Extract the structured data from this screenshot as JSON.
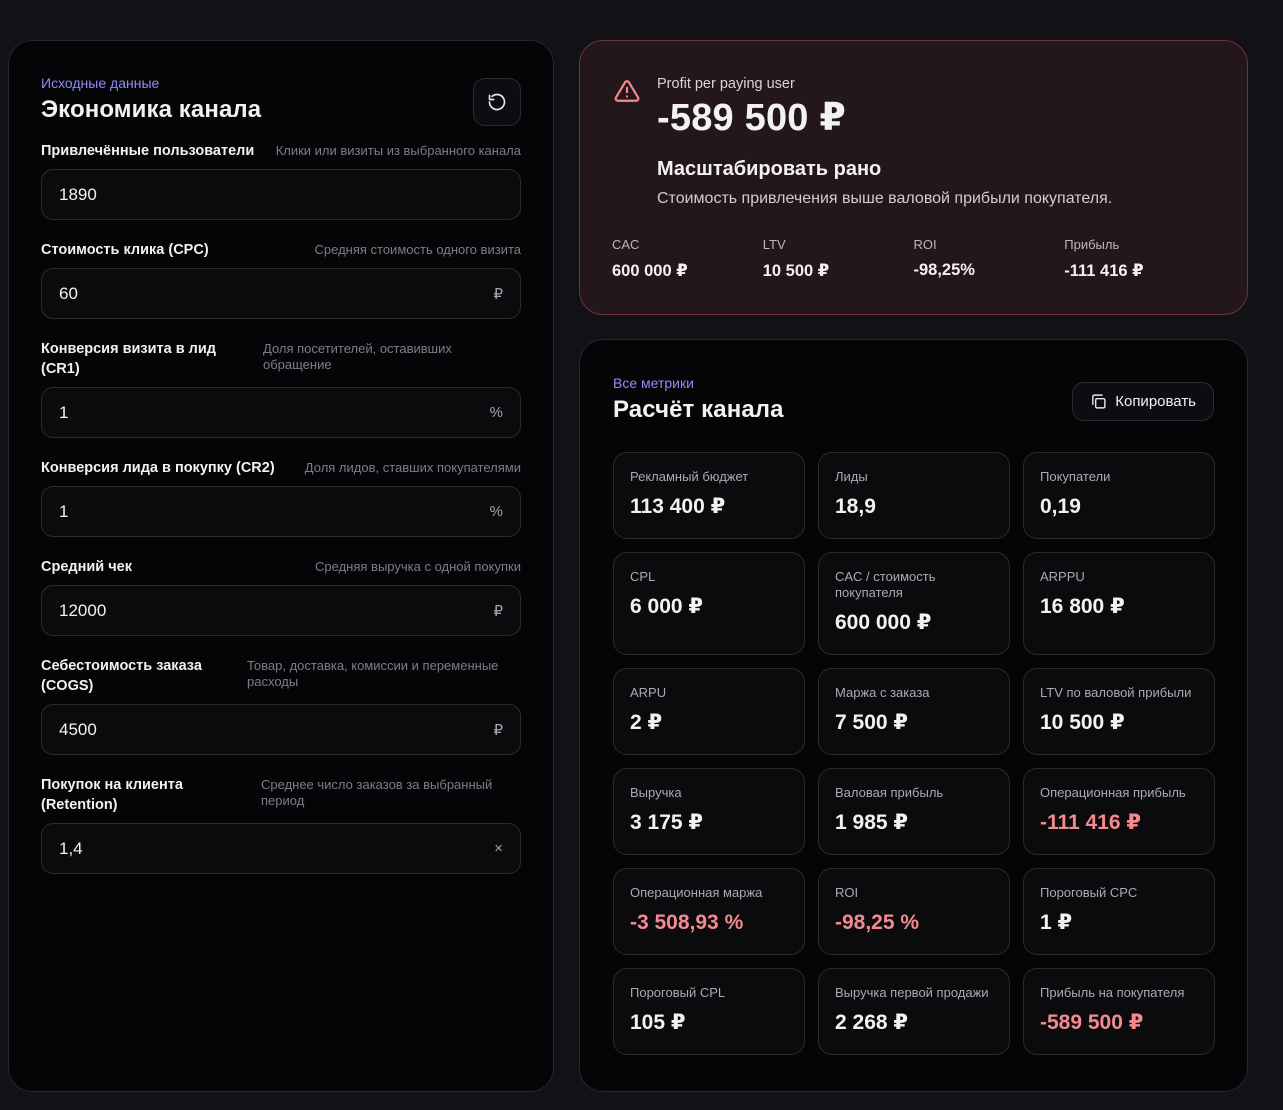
{
  "inputs": {
    "eyebrow": "Исходные данные",
    "title": "Экономика канала",
    "fields": [
      {
        "label": "Привлечённые пользователи",
        "hint": "Клики или визиты из выбранного канала",
        "value": "1890",
        "unit": ""
      },
      {
        "label": "Стоимость клика (CPC)",
        "hint": "Средняя стоимость одного визита",
        "value": "60",
        "unit": "₽"
      },
      {
        "label": "Конверсия визита в лид (CR1)",
        "hint": "Доля посетителей, оставивших обращение",
        "value": "1",
        "unit": "%"
      },
      {
        "label": "Конверсия лида в покупку (CR2)",
        "hint": "Доля лидов, ставших покупателями",
        "value": "1",
        "unit": "%"
      },
      {
        "label": "Средний чек",
        "hint": "Средняя выручка с одной покупки",
        "value": "12000",
        "unit": "₽"
      },
      {
        "label": "Себестоимость заказа (COGS)",
        "hint": "Товар, доставка, комиссии и переменные расходы",
        "value": "4500",
        "unit": "₽"
      },
      {
        "label": "Покупок на клиента (Retention)",
        "hint": "Среднее число заказов за выбранный период",
        "value": "1,4",
        "unit": "×"
      }
    ]
  },
  "alert": {
    "eyebrow": "Profit per paying user",
    "value": "-589 500 ₽",
    "headline": "Масштабировать рано",
    "description": "Стоимость привлечения выше валовой прибыли покупателя.",
    "metrics": [
      {
        "label": "CAC",
        "value": "600 000 ₽"
      },
      {
        "label": "LTV",
        "value": "10 500 ₽"
      },
      {
        "label": "ROI",
        "value": "-98,25%"
      },
      {
        "label": "Прибыль",
        "value": "-111 416 ₽"
      }
    ]
  },
  "metrics": {
    "eyebrow": "Все метрики",
    "title": "Расчёт канала",
    "copy_label": "Копировать",
    "cards": [
      {
        "label": "Рекламный бюджет",
        "value": "113 400 ₽",
        "negative": false
      },
      {
        "label": "Лиды",
        "value": "18,9",
        "negative": false
      },
      {
        "label": "Покупатели",
        "value": "0,19",
        "negative": false
      },
      {
        "label": "CPL",
        "value": "6 000 ₽",
        "negative": false
      },
      {
        "label": "CAC / стоимость покупателя",
        "value": "600 000 ₽",
        "negative": false
      },
      {
        "label": "ARPPU",
        "value": "16 800 ₽",
        "negative": false
      },
      {
        "label": "ARPU",
        "value": "2 ₽",
        "negative": false
      },
      {
        "label": "Маржа с заказа",
        "value": "7 500 ₽",
        "negative": false
      },
      {
        "label": "LTV по валовой прибыли",
        "value": "10 500 ₽",
        "negative": false
      },
      {
        "label": "Выручка",
        "value": "3 175 ₽",
        "negative": false
      },
      {
        "label": "Валовая прибыль",
        "value": "1 985 ₽",
        "negative": false
      },
      {
        "label": "Операционная прибыль",
        "value": "-111 416 ₽",
        "negative": true
      },
      {
        "label": "Операционная маржа",
        "value": "-3 508,93 %",
        "negative": true
      },
      {
        "label": "ROI",
        "value": "-98,25 %",
        "negative": true
      },
      {
        "label": "Пороговый CPC",
        "value": "1 ₽",
        "negative": false
      },
      {
        "label": "Пороговый CPL",
        "value": "105 ₽",
        "negative": false
      },
      {
        "label": "Выручка первой продажи",
        "value": "2 268 ₽",
        "negative": false
      },
      {
        "label": "Прибыль на покупателя",
        "value": "-589 500 ₽",
        "negative": true
      }
    ]
  },
  "colors": {
    "accent": "#8f8cf6",
    "negative": "#f38a8f",
    "alert_border": "#6a3340"
  },
  "icons": {
    "reset": "refresh-icon",
    "alert": "warning-triangle-icon",
    "copy": "copy-icon"
  }
}
